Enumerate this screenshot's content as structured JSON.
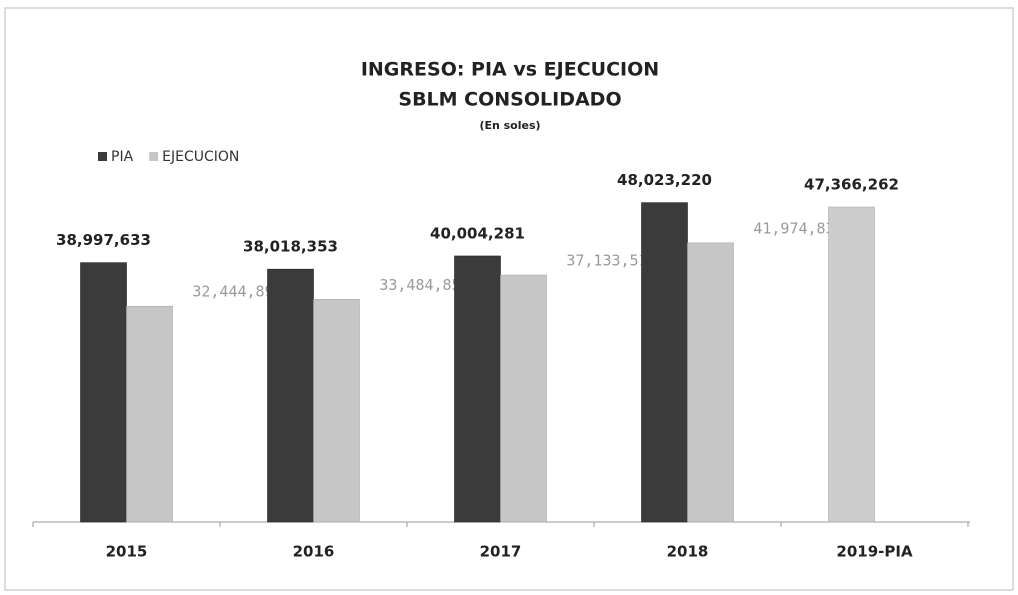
{
  "chart_data": {
    "type": "bar",
    "title": "INGRESO: PIA vs EJECUCION",
    "subtitle": "SBLM CONSOLIDADO",
    "units": "(En soles)",
    "categories": [
      "2015",
      "2016",
      "2017",
      "2018",
      "2019-PIA"
    ],
    "series": [
      {
        "name": "PIA",
        "color": "#3b3b3b",
        "point_colors": [
          "#3b3b3b",
          "#3b3b3b",
          "#3b3b3b",
          "#3b3b3b",
          "#cdcdcd"
        ],
        "values": [
          38997633,
          38018353,
          40004281,
          48023220,
          47366262
        ],
        "value_labels": [
          "38,997,633",
          "38,018,353",
          "40,004,281",
          "48,023,220",
          "47,366,262"
        ]
      },
      {
        "name": "EJECUCION",
        "color": "#c6c6c6",
        "values": [
          32444890,
          33484851,
          37133514,
          41974835,
          null
        ],
        "value_labels": [
          "32,444,890",
          "33,484,851",
          "37,133,514",
          "41,974,835",
          null
        ]
      }
    ],
    "ylim": [
      0,
      60000000
    ],
    "legend": "top-left"
  }
}
